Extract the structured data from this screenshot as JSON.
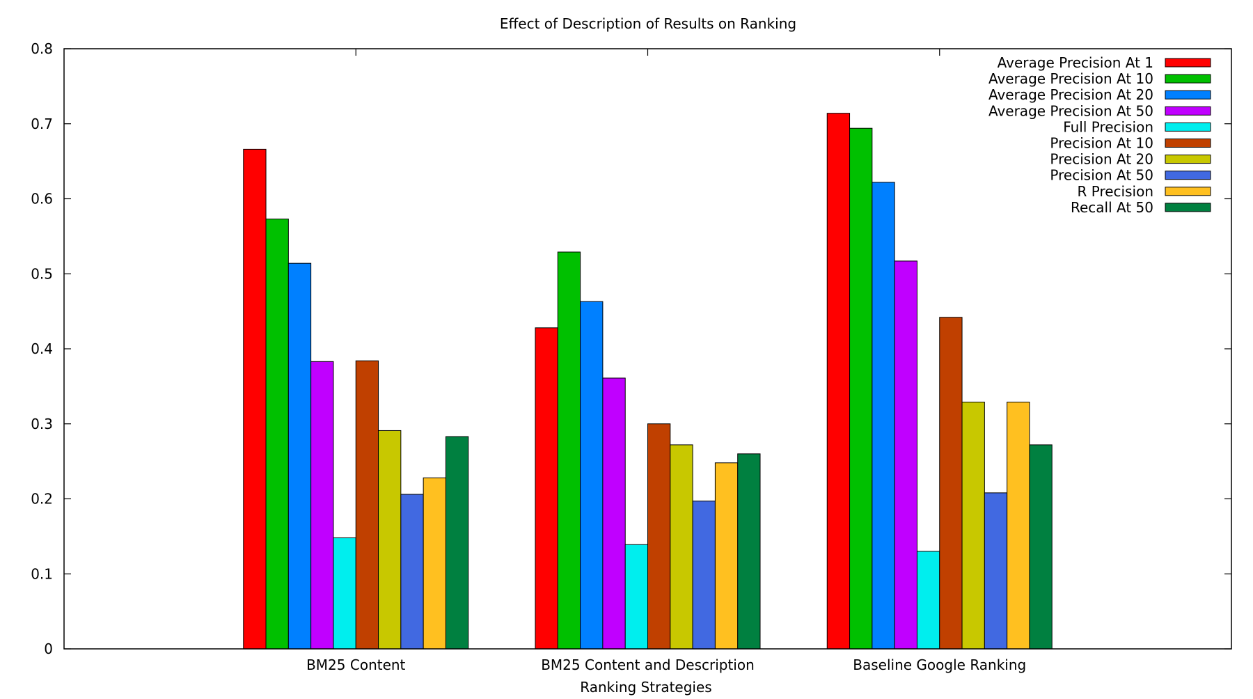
{
  "chart_data": {
    "type": "bar",
    "title": "Effect of Description of Results on Ranking",
    "xlabel": "Ranking Strategies",
    "ylabel": "",
    "ylim": [
      0,
      0.8
    ],
    "yticks": [
      "0",
      "0.1",
      "0.2",
      "0.3",
      "0.4",
      "0.5",
      "0.6",
      "0.7",
      "0.8"
    ],
    "grid": false,
    "legend_position": "top-right",
    "categories": [
      "BM25 Content",
      "BM25 Content and Description",
      "Baseline Google Ranking"
    ],
    "series": [
      {
        "name": "Average Precision At 1",
        "color": "#ff0000",
        "values": [
          0.666,
          0.428,
          0.714
        ]
      },
      {
        "name": "Average Precision At 10",
        "color": "#00c000",
        "values": [
          0.573,
          0.529,
          0.694
        ]
      },
      {
        "name": "Average Precision At 20",
        "color": "#0080ff",
        "values": [
          0.514,
          0.463,
          0.622
        ]
      },
      {
        "name": "Average Precision At 50",
        "color": "#c000ff",
        "values": [
          0.383,
          0.361,
          0.517
        ]
      },
      {
        "name": "Full Precision",
        "color": "#00eeee",
        "values": [
          0.148,
          0.139,
          0.13
        ]
      },
      {
        "name": "Precision At 10",
        "color": "#c04000",
        "values": [
          0.384,
          0.3,
          0.442
        ]
      },
      {
        "name": "Precision At 20",
        "color": "#c8c800",
        "values": [
          0.291,
          0.272,
          0.329
        ]
      },
      {
        "name": "Precision At 50",
        "color": "#4169e1",
        "values": [
          0.206,
          0.197,
          0.208
        ]
      },
      {
        "name": "R Precision",
        "color": "#ffc020",
        "values": [
          0.228,
          0.248,
          0.329
        ]
      },
      {
        "name": "Recall At 50",
        "color": "#008040",
        "values": [
          0.283,
          0.26,
          0.272
        ]
      }
    ]
  }
}
